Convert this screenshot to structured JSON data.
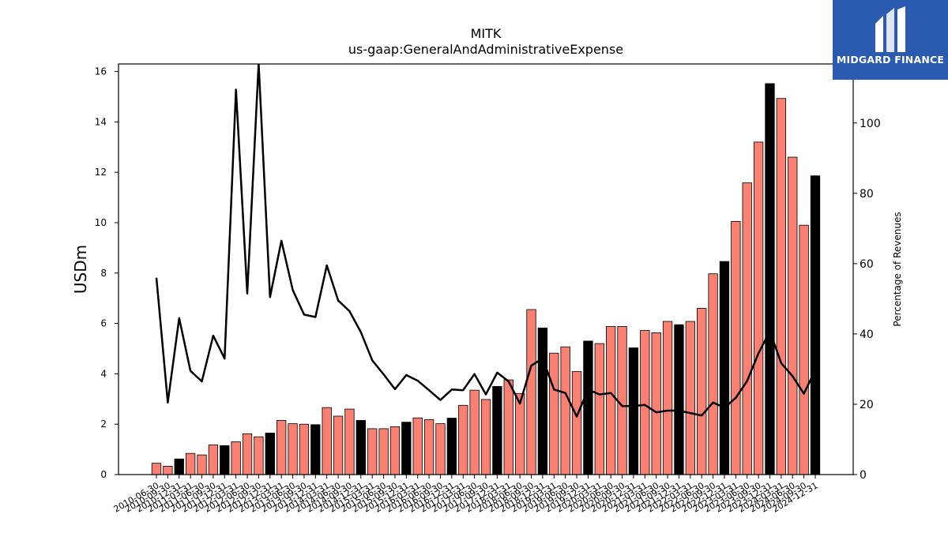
{
  "chart_data": {
    "type": "bar",
    "title": "MITK",
    "subtitle": "us-gaap:GeneralAndAdministrativeExpense",
    "ylabel": "USDm",
    "ylabel_right": "Percentage of Revenues",
    "ylim": [
      0,
      16.3
    ],
    "ylim_right": [
      0,
      116.8
    ],
    "yticks": [
      0,
      2,
      4,
      6,
      8,
      10,
      12,
      14,
      16
    ],
    "yticks_right": [
      0,
      20,
      40,
      60,
      80,
      100
    ],
    "xticks_shown": [
      "2010-06-30",
      "2010-09-30",
      "2010-12-31",
      "2011-03-31",
      "2011-06-30",
      "2011-09-30",
      "2011-12-31",
      "2012-03-31",
      "2012-06-30",
      "2012-09-30",
      "2012-12-31",
      "2013-03-31",
      "2013-06-30",
      "2013-09-30",
      "2013-12-31",
      "2014-03-31",
      "2014-06-30",
      "2014-09-30",
      "2014-12-31",
      "2015-03-31",
      "2015-06-30",
      "2015-09-30",
      "2015-12-31",
      "2016-03-31",
      "2016-06-30",
      "2016-09-30",
      "2016-12-31",
      "2017-03-31",
      "2017-06-30",
      "2017-09-30",
      "2017-12-31",
      "2018-03-31",
      "2018-06-30",
      "2018-09-30",
      "2018-12-31",
      "2019-03-31",
      "2019-06-30",
      "2019-09-30",
      "2019-12-31",
      "2020-03-31",
      "2020-06-30",
      "2020-09-30",
      "2020-12-31",
      "2021-03-31",
      "2021-06-30",
      "2021-09-30",
      "2021-12-31",
      "2022-03-31",
      "2022-06-30",
      "2022-09-30",
      "2022-12-31",
      "2023-03-31",
      "2023-06-30",
      "2023-09-30",
      "2023-12-31",
      "2024-03-31",
      "2024-06-30",
      "2024-09-30",
      "2024-12-31"
    ],
    "categories": [
      "2010-06-30",
      "2010-09-30",
      "2010-12-31",
      "2011-03-31",
      "2011-06-30",
      "2011-09-30",
      "2011-12-31",
      "2012-03-31",
      "2012-06-30",
      "2012-09-30",
      "2012-12-31",
      "2013-03-31",
      "2013-06-30",
      "2013-09-30",
      "2013-12-31",
      "2014-03-31",
      "2014-06-30",
      "2014-09-30",
      "2014-12-31",
      "2015-03-31",
      "2015-06-30",
      "2015-09-30",
      "2015-12-31",
      "2016-03-31",
      "2016-06-30",
      "2016-09-30",
      "2016-12-31",
      "2017-03-31",
      "2017-06-30",
      "2017-09-30",
      "2017-12-31",
      "2018-03-31",
      "2018-06-30",
      "2018-09-30",
      "2018-12-31",
      "2019-03-31",
      "2019-06-30",
      "2019-09-30",
      "2019-12-31",
      "2020-03-31",
      "2020-06-30",
      "2020-09-30",
      "2020-12-31",
      "2021-03-31",
      "2021-06-30",
      "2021-09-30",
      "2021-12-31",
      "2022-03-31",
      "2022-06-30",
      "2022-09-30",
      "2022-12-31",
      "2023-03-31",
      "2023-06-30",
      "2023-09-30",
      "2023-12-31",
      "2024-03-31",
      "2024-06-30",
      "2024-09-30",
      "2024-12-31"
    ],
    "series": [
      {
        "type": "bar",
        "values": [
          0.45,
          0.33,
          0.62,
          0.84,
          0.78,
          1.18,
          1.15,
          1.3,
          1.62,
          1.5,
          1.65,
          2.15,
          2.02,
          2.0,
          1.98,
          2.66,
          2.32,
          2.6,
          2.15,
          1.82,
          1.82,
          1.9,
          2.08,
          2.25,
          2.18,
          2.02,
          2.24,
          2.75,
          3.35,
          2.98,
          3.5,
          3.76,
          3.22,
          6.55,
          5.82,
          4.82,
          5.07,
          4.09,
          5.3,
          5.2,
          5.88,
          5.88,
          5.03,
          5.72,
          5.63,
          6.08,
          5.95,
          6.08,
          6.6,
          7.97,
          8.46,
          10.05,
          11.58,
          13.2,
          15.52,
          14.93,
          12.6,
          9.9,
          11.86
        ],
        "highlight_color": "#000000",
        "bar_color": "#fa8072",
        "highlight_indices": [
          2,
          6,
          10,
          14,
          18,
          22,
          26,
          30,
          34,
          38,
          42,
          46,
          50,
          54,
          58
        ]
      },
      {
        "type": "line",
        "axis": "right",
        "color": "#000000",
        "values": [
          56,
          20.5,
          44.5,
          29.5,
          26.5,
          39.5,
          33.0,
          109.5,
          51.5,
          117.0,
          50.5,
          66.5,
          52.5,
          45.5,
          44.8,
          59.5,
          49.5,
          46.5,
          40.5,
          32.5,
          28.5,
          24.3,
          28.3,
          26.7,
          24.0,
          21.2,
          24.2,
          24.0,
          28.6,
          22.8,
          29.0,
          26.5,
          20.2,
          31.0,
          33.0,
          24.2,
          23.2,
          16.5,
          24.2,
          22.8,
          23.2,
          19.5,
          19.5,
          19.8,
          17.7,
          18.2,
          18.2,
          17.5,
          16.8,
          20.5,
          19.0,
          21.8,
          26.6,
          34.5,
          40.8,
          31.7,
          28.0,
          23.0,
          29.7
        ]
      }
    ]
  },
  "logo": {
    "text": "MIDGARD FINANCE"
  }
}
